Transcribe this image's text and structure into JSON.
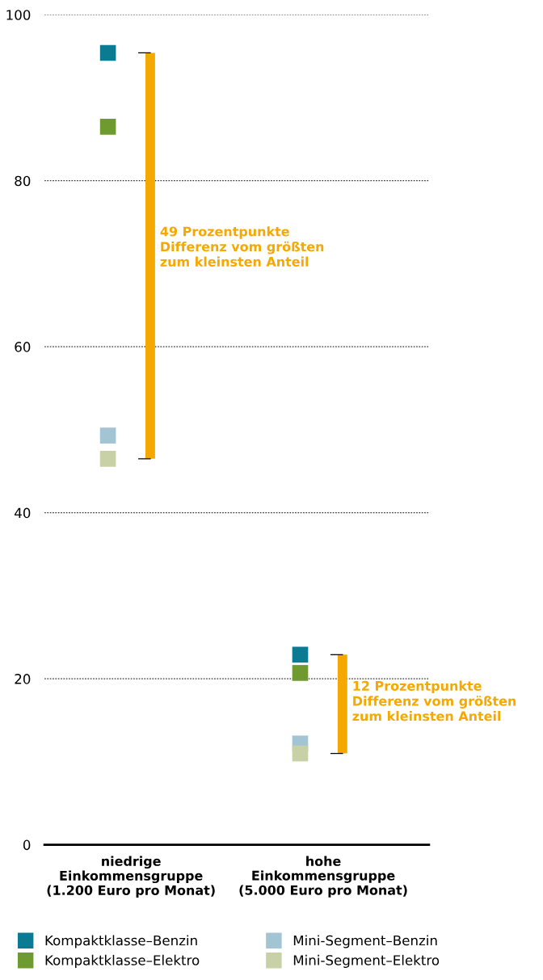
{
  "chart_data": {
    "type": "scatter",
    "categories": [
      "niedrige\nEinkommensgruppe\n(1.200 Euro pro Monat)",
      "hohe\nEinkommensgruppe\n(5.000 Euro pro Monat)"
    ],
    "ylim": [
      0,
      100
    ],
    "yticks": [
      0,
      20,
      40,
      60,
      80,
      100
    ],
    "grid": "y",
    "legend": "bottom",
    "marker": "square",
    "series": [
      {
        "name": "Kompaktklasse–Benzin",
        "color": "#0b7a93",
        "values": [
          95.4,
          22.9
        ]
      },
      {
        "name": "Kompaktklasse–Elektro",
        "color": "#6e9a2f",
        "values": [
          86.5,
          20.7
        ]
      },
      {
        "name": "Mini-Segment–Benzin",
        "color": "#a3c4d3",
        "values": [
          49.3,
          12.2
        ]
      },
      {
        "name": "Mini-Segment–Elektro",
        "color": "#c8d1a6",
        "values": [
          46.5,
          11.0
        ]
      },
      {
        "type": "bar",
        "color": "#f5a800",
        "base": [
          46.5,
          11.0
        ],
        "values": [
          48.9,
          11.9
        ]
      }
    ],
    "annotations": [
      "49 Prozentpunkte\nDifferenz vom größten\nzum kleinsten Anteil",
      "12 Prozentpunkte\nDifferenz vom größten\nzum kleinsten Anteil"
    ]
  }
}
